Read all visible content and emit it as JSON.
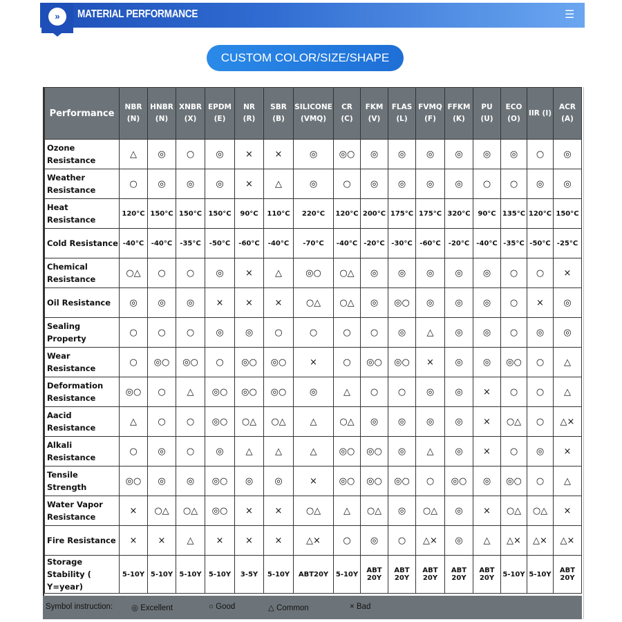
{
  "header": {
    "title": "MATERIAL PERFORMANCE",
    "badge_icon": "double-chevron-down-icon",
    "menu_icon": "hamburger-menu-icon",
    "colors": {
      "bar_start": "#1e4fb8",
      "bar_end": "#6aa6f0"
    }
  },
  "cta": {
    "label": "CUSTOM COLOR/SIZE/SHAPE"
  },
  "table": {
    "corner": "Performance",
    "columns": [
      [
        "NBR",
        "(N)"
      ],
      [
        "HNBR",
        "(N)"
      ],
      [
        "XNBR",
        "(X)"
      ],
      [
        "EPDM",
        "(E)"
      ],
      [
        "NR",
        "(R)"
      ],
      [
        "SBR",
        "(B)"
      ],
      [
        "SILICONE",
        "(VMQ)"
      ],
      [
        "CR",
        "(C)"
      ],
      [
        "FKM",
        "(V)"
      ],
      [
        "FLAS",
        "(L)"
      ],
      [
        "FVMQ",
        "(F)"
      ],
      [
        "FFKM",
        "(K)"
      ],
      [
        "PU",
        "(U)"
      ],
      [
        "ECO",
        "(O)"
      ],
      [
        "IIR (I)",
        ""
      ],
      [
        "ACR",
        "(A)"
      ]
    ],
    "rows": [
      {
        "label": "Ozone Resistance",
        "values": [
          "△",
          "◎",
          "○",
          "◎",
          "×",
          "×",
          "◎",
          "◎○",
          "◎",
          "◎",
          "◎",
          "◎",
          "◎",
          "◎",
          "○",
          "◎"
        ]
      },
      {
        "label": "Weather Resistance",
        "values": [
          "○",
          "◎",
          "◎",
          "◎",
          "×",
          "△",
          "◎",
          "○",
          "◎",
          "◎",
          "◎",
          "◎",
          "○",
          "○",
          "◎",
          "◎"
        ]
      },
      {
        "label": "Heat Resistance",
        "values": [
          "120°C",
          "150°C",
          "150°C",
          "150°C",
          "90°C",
          "110°C",
          "220°C",
          "120°C",
          "200°C",
          "175°C",
          "175°C",
          "320°C",
          "90°C",
          "135°C",
          "120°C",
          "150°C"
        ]
      },
      {
        "label": "Cold Resistance",
        "values": [
          "-40°C",
          "-40°C",
          "-35°C",
          "-50°C",
          "-60°C",
          "-40°C",
          "-70°C",
          "-40°C",
          "-20°C",
          "-30°C",
          "-60°C",
          "-20°C",
          "-40°C",
          "-35°C",
          "-50°C",
          "-25°C"
        ]
      },
      {
        "label": "Chemical Resistance",
        "values": [
          "○△",
          "○",
          "○",
          "◎",
          "×",
          "△",
          "◎○",
          "○△",
          "◎",
          "◎",
          "◎",
          "◎",
          "◎",
          "○",
          "○",
          "×"
        ]
      },
      {
        "label": "Oil Resistance",
        "values": [
          "◎",
          "◎",
          "◎",
          "×",
          "×",
          "×",
          "○△",
          "○△",
          "◎",
          "◎○",
          "◎",
          "◎",
          "◎",
          "○",
          "×",
          "◎"
        ]
      },
      {
        "label": "Sealing Property",
        "values": [
          "○",
          "○",
          "○",
          "◎",
          "◎",
          "○",
          "○",
          "○",
          "○",
          "◎",
          "△",
          "◎",
          "◎",
          "○",
          "◎",
          "◎"
        ]
      },
      {
        "label": "Wear Resistance",
        "values": [
          "○",
          "◎○",
          "◎○",
          "○",
          "◎○",
          "◎○",
          "×",
          "○",
          "◎○",
          "◎○",
          "×",
          "◎",
          "◎",
          "◎○",
          "○",
          "△"
        ]
      },
      {
        "label": "Deformation Resistance",
        "values": [
          "◎○",
          "○",
          "△",
          "◎○",
          "◎○",
          "◎○",
          "◎",
          "△",
          "○",
          "○",
          "◎",
          "◎",
          "×",
          "○",
          "○",
          "△"
        ]
      },
      {
        "label": "Aacid Resistance",
        "values": [
          "△",
          "○",
          "○",
          "◎○",
          "○△",
          "○△",
          "△",
          "○△",
          "◎",
          "◎",
          "◎",
          "◎",
          "×",
          "○△",
          "○",
          "△×"
        ]
      },
      {
        "label": "Alkali Resistance",
        "values": [
          "○",
          "◎",
          "○",
          "◎",
          "△",
          "△",
          "△",
          "◎○",
          "◎○",
          "◎",
          "△",
          "◎",
          "×",
          "○",
          "◎",
          "×"
        ]
      },
      {
        "label": "Tensile Strength",
        "values": [
          "◎○",
          "◎",
          "◎",
          "◎○",
          "◎",
          "◎",
          "×",
          "◎○",
          "◎○",
          "◎○",
          "○",
          "◎○",
          "◎",
          "◎○",
          "○",
          "△"
        ]
      },
      {
        "label": "Water Vapor Resistance",
        "values": [
          "×",
          "○△",
          "○△",
          "◎○",
          "×",
          "×",
          "○△",
          "△",
          "○△",
          "◎",
          "○△",
          "◎",
          "×",
          "○△",
          "○△",
          "×"
        ]
      },
      {
        "label": "Fire Resistance",
        "values": [
          "×",
          "×",
          "△",
          "×",
          "×",
          "×",
          "△×",
          "○",
          "◎",
          "○",
          "△×",
          "◎",
          "△",
          "△×",
          "△×",
          "△×"
        ]
      },
      {
        "label": "Storage Stability ( Y=year)",
        "values": [
          "5-10Y",
          "5-10Y",
          "5-10Y",
          "5-10Y",
          "3-5Y",
          "5-10Y",
          "ABT20Y",
          "5-10Y",
          "ABT 20Y",
          "ABT 20Y",
          "ABT 20Y",
          "ABT 20Y",
          "ABT 20Y",
          "5-10Y",
          "5-10Y",
          "ABT 20Y"
        ]
      }
    ]
  },
  "legend": {
    "title": "Symbol instruction:",
    "excellent": "◎ Excellent",
    "good": "○ Good",
    "common": "△ Common",
    "bad": "× Bad"
  }
}
